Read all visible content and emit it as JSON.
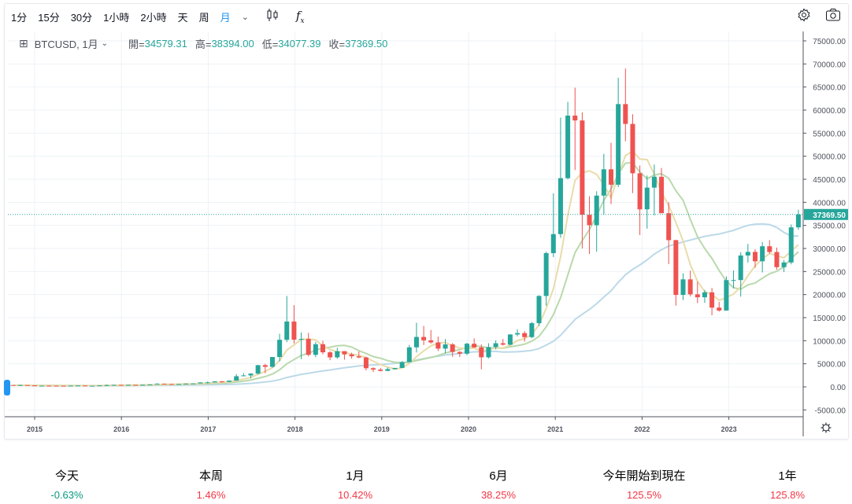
{
  "toolbar": {
    "intervals": [
      "1分",
      "15分",
      "30分",
      "1小時",
      "2小時",
      "天",
      "周",
      "月"
    ],
    "active_interval": "月",
    "icons": [
      "chevron-down-icon",
      "candlestick-icon",
      "indicator-fx-icon",
      "gear-icon",
      "camera-icon"
    ]
  },
  "legend": {
    "symbol": "BTCUSD, 1月",
    "open_label": "開=",
    "open": "34579.31",
    "high_label": "高=",
    "high": "38394.00",
    "low_label": "低=",
    "low": "34077.39",
    "close_label": "收=",
    "close": "37369.50"
  },
  "colors": {
    "up": "#26a69a",
    "down": "#ef5350",
    "ma_short": "#e9dcaa",
    "ma_mid": "#b9d9ac",
    "ma_long": "#bcd9e8",
    "accent": "#2196f3",
    "pct_up": "#f23645",
    "pct_down": "#089981"
  },
  "chart_data": {
    "type": "candlestick",
    "symbol": "BTCUSD",
    "interval": "1M",
    "start": "2014-10",
    "ylim": [
      -5000,
      75000
    ],
    "y_ticks": [
      "-5000.00",
      "0.00",
      "5000.00",
      "10000.00",
      "15000.00",
      "20000.00",
      "25000.00",
      "30000.00",
      "35000.00",
      "40000.00",
      "45000.00",
      "50000.00",
      "55000.00",
      "60000.00",
      "65000.00",
      "70000.00",
      "75000.00"
    ],
    "x_ticks": [
      "2015",
      "2016",
      "2017",
      "2018",
      "2019",
      "2020",
      "2021",
      "2022",
      "2023"
    ],
    "last_price_label": "37369.50",
    "ma_periods": [
      5,
      10,
      30
    ],
    "ohlc": [
      [
        386,
        412,
        289,
        338
      ],
      [
        338,
        457,
        320,
        378
      ],
      [
        378,
        385,
        310,
        320
      ],
      [
        320,
        321,
        170,
        217
      ],
      [
        217,
        263,
        212,
        254
      ],
      [
        254,
        300,
        236,
        244
      ],
      [
        244,
        261,
        214,
        236
      ],
      [
        236,
        247,
        226,
        230
      ],
      [
        230,
        268,
        221,
        263
      ],
      [
        263,
        314,
        262,
        284
      ],
      [
        284,
        285,
        199,
        230
      ],
      [
        230,
        245,
        225,
        236
      ],
      [
        236,
        334,
        235,
        314
      ],
      [
        314,
        503,
        298,
        378
      ],
      [
        378,
        466,
        345,
        430
      ],
      [
        430,
        463,
        353,
        368
      ],
      [
        368,
        446,
        366,
        437
      ],
      [
        437,
        438,
        394,
        416
      ],
      [
        416,
        468,
        415,
        448
      ],
      [
        448,
        548,
        437,
        531
      ],
      [
        531,
        778,
        531,
        673
      ],
      [
        673,
        704,
        605,
        624
      ],
      [
        624,
        627,
        480,
        575
      ],
      [
        575,
        618,
        570,
        609
      ],
      [
        609,
        737,
        606,
        700
      ],
      [
        700,
        752,
        680,
        742
      ],
      [
        742,
        979,
        741,
        964
      ],
      [
        964,
        1150,
        752,
        970
      ],
      [
        970,
        1211,
        934,
        1190
      ],
      [
        1190,
        1290,
        890,
        1080
      ],
      [
        1080,
        1380,
        1060,
        1350
      ],
      [
        1350,
        2760,
        1350,
        2300
      ],
      [
        2300,
        2980,
        2300,
        2480
      ],
      [
        2480,
        2920,
        1830,
        2875
      ],
      [
        2875,
        4750,
        2670,
        4700
      ],
      [
        4700,
        5000,
        2970,
        4340
      ],
      [
        4340,
        6470,
        4160,
        6470
      ],
      [
        6470,
        11500,
        5500,
        10200
      ],
      [
        10200,
        19700,
        9700,
        14160
      ],
      [
        14160,
        17700,
        9400,
        10220
      ],
      [
        10220,
        11790,
        6000,
        10390
      ],
      [
        10390,
        11700,
        6600,
        6940
      ],
      [
        6940,
        9750,
        6430,
        9240
      ],
      [
        9240,
        9990,
        7030,
        7490
      ],
      [
        7490,
        7760,
        5780,
        6390
      ],
      [
        6390,
        8470,
        6070,
        7730
      ],
      [
        7730,
        7760,
        5880,
        7030
      ],
      [
        7030,
        7410,
        6100,
        6630
      ],
      [
        6630,
        7680,
        6210,
        6370
      ],
      [
        6370,
        6550,
        3560,
        4040
      ],
      [
        4040,
        4240,
        3210,
        3740
      ],
      [
        3740,
        4110,
        3350,
        3460
      ],
      [
        3460,
        4210,
        3390,
        3850
      ],
      [
        3850,
        4120,
        3730,
        4100
      ],
      [
        4100,
        5600,
        4080,
        5350
      ],
      [
        5350,
        9100,
        5340,
        8570
      ],
      [
        8570,
        13900,
        7450,
        10820
      ],
      [
        10820,
        13200,
        9070,
        10090
      ],
      [
        10090,
        12330,
        9380,
        9630
      ],
      [
        9630,
        10900,
        7750,
        8290
      ],
      [
        8290,
        10360,
        7300,
        9200
      ],
      [
        9200,
        9500,
        6520,
        7560
      ],
      [
        7560,
        7750,
        6440,
        7190
      ],
      [
        7190,
        9570,
        6870,
        9350
      ],
      [
        9350,
        10500,
        8480,
        8540
      ],
      [
        8540,
        9190,
        3800,
        6410
      ],
      [
        6410,
        9460,
        6150,
        8620
      ],
      [
        8620,
        10070,
        8140,
        9450
      ],
      [
        9450,
        10380,
        8950,
        9140
      ],
      [
        9140,
        11440,
        8970,
        11350
      ],
      [
        11350,
        12480,
        10950,
        11650
      ],
      [
        11650,
        12070,
        9830,
        10780
      ],
      [
        10780,
        14100,
        10540,
        13800
      ],
      [
        13800,
        19860,
        13200,
        19700
      ],
      [
        19700,
        29300,
        17580,
        28990
      ],
      [
        28990,
        41950,
        28130,
        33110
      ],
      [
        33110,
        58350,
        32300,
        45240
      ],
      [
        45240,
        61780,
        45000,
        58800
      ],
      [
        58800,
        64850,
        47000,
        57750
      ],
      [
        57750,
        59500,
        30000,
        37300
      ],
      [
        37300,
        41300,
        28800,
        35040
      ],
      [
        35040,
        42400,
        29300,
        41460
      ],
      [
        41460,
        50500,
        37330,
        47160
      ],
      [
        47160,
        52900,
        39600,
        43820
      ],
      [
        43820,
        67000,
        43300,
        61300
      ],
      [
        61300,
        69000,
        53250,
        57000
      ],
      [
        57000,
        59100,
        42000,
        46300
      ],
      [
        46300,
        47990,
        32900,
        38480
      ],
      [
        38480,
        45800,
        34300,
        43190
      ],
      [
        43190,
        48200,
        37200,
        45540
      ],
      [
        45540,
        47450,
        37700,
        37640
      ],
      [
        37640,
        40000,
        26600,
        31800
      ],
      [
        31800,
        31900,
        17600,
        19930
      ],
      [
        19930,
        24600,
        18800,
        23300
      ],
      [
        23300,
        25200,
        19600,
        20050
      ],
      [
        20050,
        22800,
        18150,
        19420
      ],
      [
        19420,
        21000,
        18200,
        20490
      ],
      [
        20490,
        21450,
        15500,
        17170
      ],
      [
        17170,
        18400,
        16300,
        16550
      ],
      [
        16550,
        23950,
        16500,
        23140
      ],
      [
        23140,
        25250,
        21400,
        23150
      ],
      [
        23150,
        29200,
        19550,
        28480
      ],
      [
        28480,
        31000,
        26940,
        29250
      ],
      [
        29250,
        29820,
        25800,
        27220
      ],
      [
        27220,
        31400,
        24800,
        30480
      ],
      [
        30480,
        31800,
        28860,
        29230
      ],
      [
        29230,
        30200,
        25400,
        25940
      ],
      [
        25940,
        27480,
        24900,
        26970
      ],
      [
        26970,
        35200,
        26560,
        34580
      ],
      [
        34579.31,
        38394,
        34077.39,
        37369.5
      ]
    ]
  },
  "stats": [
    {
      "label": "今天",
      "value": "-0.63%",
      "dir": "down"
    },
    {
      "label": "本周",
      "value": "1.46%",
      "dir": "up"
    },
    {
      "label": "1月",
      "value": "10.42%",
      "dir": "up"
    },
    {
      "label": "6月",
      "value": "38.25%",
      "dir": "up"
    },
    {
      "label": "今年開始到現在",
      "value": "125.5%",
      "dir": "up"
    },
    {
      "label": "1年",
      "value": "125.8%",
      "dir": "up"
    }
  ]
}
